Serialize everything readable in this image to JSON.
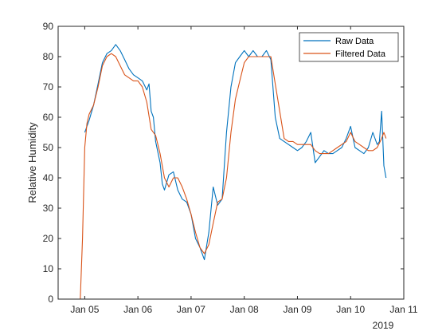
{
  "chart_data": {
    "type": "line",
    "title": "",
    "xlabel": "",
    "ylabel": "Relative Humidity",
    "x_secondary_label": "2019",
    "xlim": [
      "Jan 04 2019 12:00",
      "Jan 11 2019"
    ],
    "ylim": [
      0,
      90
    ],
    "yticks": [
      0,
      10,
      20,
      30,
      40,
      50,
      60,
      70,
      80,
      90
    ],
    "xtick_labels": [
      "Jan 05",
      "Jan 06",
      "Jan 07",
      "Jan 08",
      "Jan 09",
      "Jan 10",
      "Jan 11"
    ],
    "grid": false,
    "legend_position": "top-right",
    "colors": {
      "raw": "#0072BD",
      "filtered": "#D95319"
    },
    "series": [
      {
        "name": "Raw Data",
        "x": [
          "Jan 05 2019 00:00",
          "Jan 05 2019 02:00",
          "Jan 05 2019 04:00",
          "Jan 05 2019 06:00",
          "Jan 05 2019 08:00",
          "Jan 05 2019 10:00",
          "Jan 05 2019 12:00",
          "Jan 05 2019 14:00",
          "Jan 05 2019 16:00",
          "Jan 05 2019 18:00",
          "Jan 05 2019 20:00",
          "Jan 05 2019 22:00",
          "Jan 06 2019 00:00",
          "Jan 06 2019 02:00",
          "Jan 06 2019 04:00",
          "Jan 06 2019 05:00",
          "Jan 06 2019 06:00",
          "Jan 06 2019 07:00",
          "Jan 06 2019 08:00",
          "Jan 06 2019 10:00",
          "Jan 06 2019 11:00",
          "Jan 06 2019 12:00",
          "Jan 06 2019 14:00",
          "Jan 06 2019 16:00",
          "Jan 06 2019 18:00",
          "Jan 06 2019 20:00",
          "Jan 06 2019 22:00",
          "Jan 07 2019 00:00",
          "Jan 07 2019 02:00",
          "Jan 07 2019 04:00",
          "Jan 07 2019 06:00",
          "Jan 07 2019 08:00",
          "Jan 07 2019 10:00",
          "Jan 07 2019 12:00",
          "Jan 07 2019 14:00",
          "Jan 07 2019 16:00",
          "Jan 07 2019 18:00",
          "Jan 07 2019 20:00",
          "Jan 07 2019 22:00",
          "Jan 08 2019 00:00",
          "Jan 08 2019 02:00",
          "Jan 08 2019 04:00",
          "Jan 08 2019 06:00",
          "Jan 08 2019 08:00",
          "Jan 08 2019 10:00",
          "Jan 08 2019 12:00",
          "Jan 08 2019 14:00",
          "Jan 08 2019 16:00",
          "Jan 08 2019 18:00",
          "Jan 08 2019 20:00",
          "Jan 08 2019 22:00",
          "Jan 09 2019 00:00",
          "Jan 09 2019 02:00",
          "Jan 09 2019 04:00",
          "Jan 09 2019 06:00",
          "Jan 09 2019 08:00",
          "Jan 09 2019 10:00",
          "Jan 09 2019 12:00",
          "Jan 09 2019 14:00",
          "Jan 09 2019 16:00",
          "Jan 09 2019 18:00",
          "Jan 09 2019 20:00",
          "Jan 09 2019 22:00",
          "Jan 10 2019 00:00",
          "Jan 10 2019 02:00",
          "Jan 10 2019 04:00",
          "Jan 10 2019 06:00",
          "Jan 10 2019 08:00",
          "Jan 10 2019 10:00",
          "Jan 10 2019 12:00",
          "Jan 10 2019 13:00",
          "Jan 10 2019 14:00",
          "Jan 10 2019 15:00",
          "Jan 10 2019 16:00"
        ],
        "y": [
          55,
          59,
          64,
          71,
          78,
          81,
          82,
          84,
          82,
          79,
          76,
          74,
          73,
          72,
          69,
          71,
          62,
          60,
          52,
          45,
          38,
          36,
          41,
          42,
          36,
          33,
          32,
          28,
          20,
          17,
          13,
          22,
          37,
          31,
          33,
          55,
          70,
          78,
          80,
          82,
          80,
          82,
          80,
          80,
          82,
          79,
          60,
          53,
          52,
          51,
          50,
          49,
          50,
          52,
          55,
          45,
          47,
          49,
          48,
          48,
          49,
          50,
          53,
          57,
          50,
          49,
          48,
          50,
          55,
          51,
          52,
          62,
          44,
          40
        ]
      },
      {
        "name": "Filtered Data",
        "x": [
          "Jan 04 2019 22:00",
          "Jan 04 2019 23:00",
          "Jan 05 2019 00:00",
          "Jan 05 2019 01:00",
          "Jan 05 2019 02:00",
          "Jan 05 2019 04:00",
          "Jan 05 2019 06:00",
          "Jan 05 2019 08:00",
          "Jan 05 2019 10:00",
          "Jan 05 2019 12:00",
          "Jan 05 2019 14:00",
          "Jan 05 2019 16:00",
          "Jan 05 2019 18:00",
          "Jan 05 2019 20:00",
          "Jan 05 2019 22:00",
          "Jan 06 2019 00:00",
          "Jan 06 2019 02:00",
          "Jan 06 2019 04:00",
          "Jan 06 2019 06:00",
          "Jan 06 2019 08:00",
          "Jan 06 2019 10:00",
          "Jan 06 2019 12:00",
          "Jan 06 2019 14:00",
          "Jan 06 2019 16:00",
          "Jan 06 2019 18:00",
          "Jan 06 2019 20:00",
          "Jan 06 2019 22:00",
          "Jan 07 2019 00:00",
          "Jan 07 2019 02:00",
          "Jan 07 2019 04:00",
          "Jan 07 2019 06:00",
          "Jan 07 2019 08:00",
          "Jan 07 2019 10:00",
          "Jan 07 2019 12:00",
          "Jan 07 2019 14:00",
          "Jan 07 2019 16:00",
          "Jan 07 2019 18:00",
          "Jan 07 2019 20:00",
          "Jan 07 2019 22:00",
          "Jan 08 2019 00:00",
          "Jan 08 2019 02:00",
          "Jan 08 2019 04:00",
          "Jan 08 2019 06:00",
          "Jan 08 2019 08:00",
          "Jan 08 2019 10:00",
          "Jan 08 2019 12:00",
          "Jan 08 2019 14:00",
          "Jan 08 2019 16:00",
          "Jan 08 2019 18:00",
          "Jan 08 2019 20:00",
          "Jan 08 2019 22:00",
          "Jan 09 2019 00:00",
          "Jan 09 2019 02:00",
          "Jan 09 2019 04:00",
          "Jan 09 2019 06:00",
          "Jan 09 2019 08:00",
          "Jan 09 2019 10:00",
          "Jan 09 2019 12:00",
          "Jan 09 2019 14:00",
          "Jan 09 2019 16:00",
          "Jan 09 2019 18:00",
          "Jan 09 2019 20:00",
          "Jan 09 2019 22:00",
          "Jan 10 2019 00:00",
          "Jan 10 2019 02:00",
          "Jan 10 2019 04:00",
          "Jan 10 2019 06:00",
          "Jan 10 2019 08:00",
          "Jan 10 2019 10:00",
          "Jan 10 2019 12:00",
          "Jan 10 2019 14:00",
          "Jan 10 2019 15:00",
          "Jan 10 2019 16:00"
        ],
        "y": [
          0,
          20,
          50,
          58,
          61,
          64,
          70,
          77,
          80,
          81,
          80,
          77,
          74,
          73,
          72,
          72,
          70,
          65,
          56,
          54,
          48,
          40,
          37,
          40,
          40,
          37,
          33,
          28,
          22,
          17,
          15,
          18,
          25,
          32,
          33,
          40,
          55,
          66,
          72,
          78,
          80,
          80,
          80,
          80,
          80,
          80,
          71,
          62,
          53,
          52,
          52,
          51,
          51,
          51,
          51,
          49,
          48,
          48,
          48,
          49,
          50,
          51,
          52,
          55,
          52,
          51,
          50,
          49,
          49,
          50,
          53,
          55,
          53
        ]
      }
    ]
  }
}
